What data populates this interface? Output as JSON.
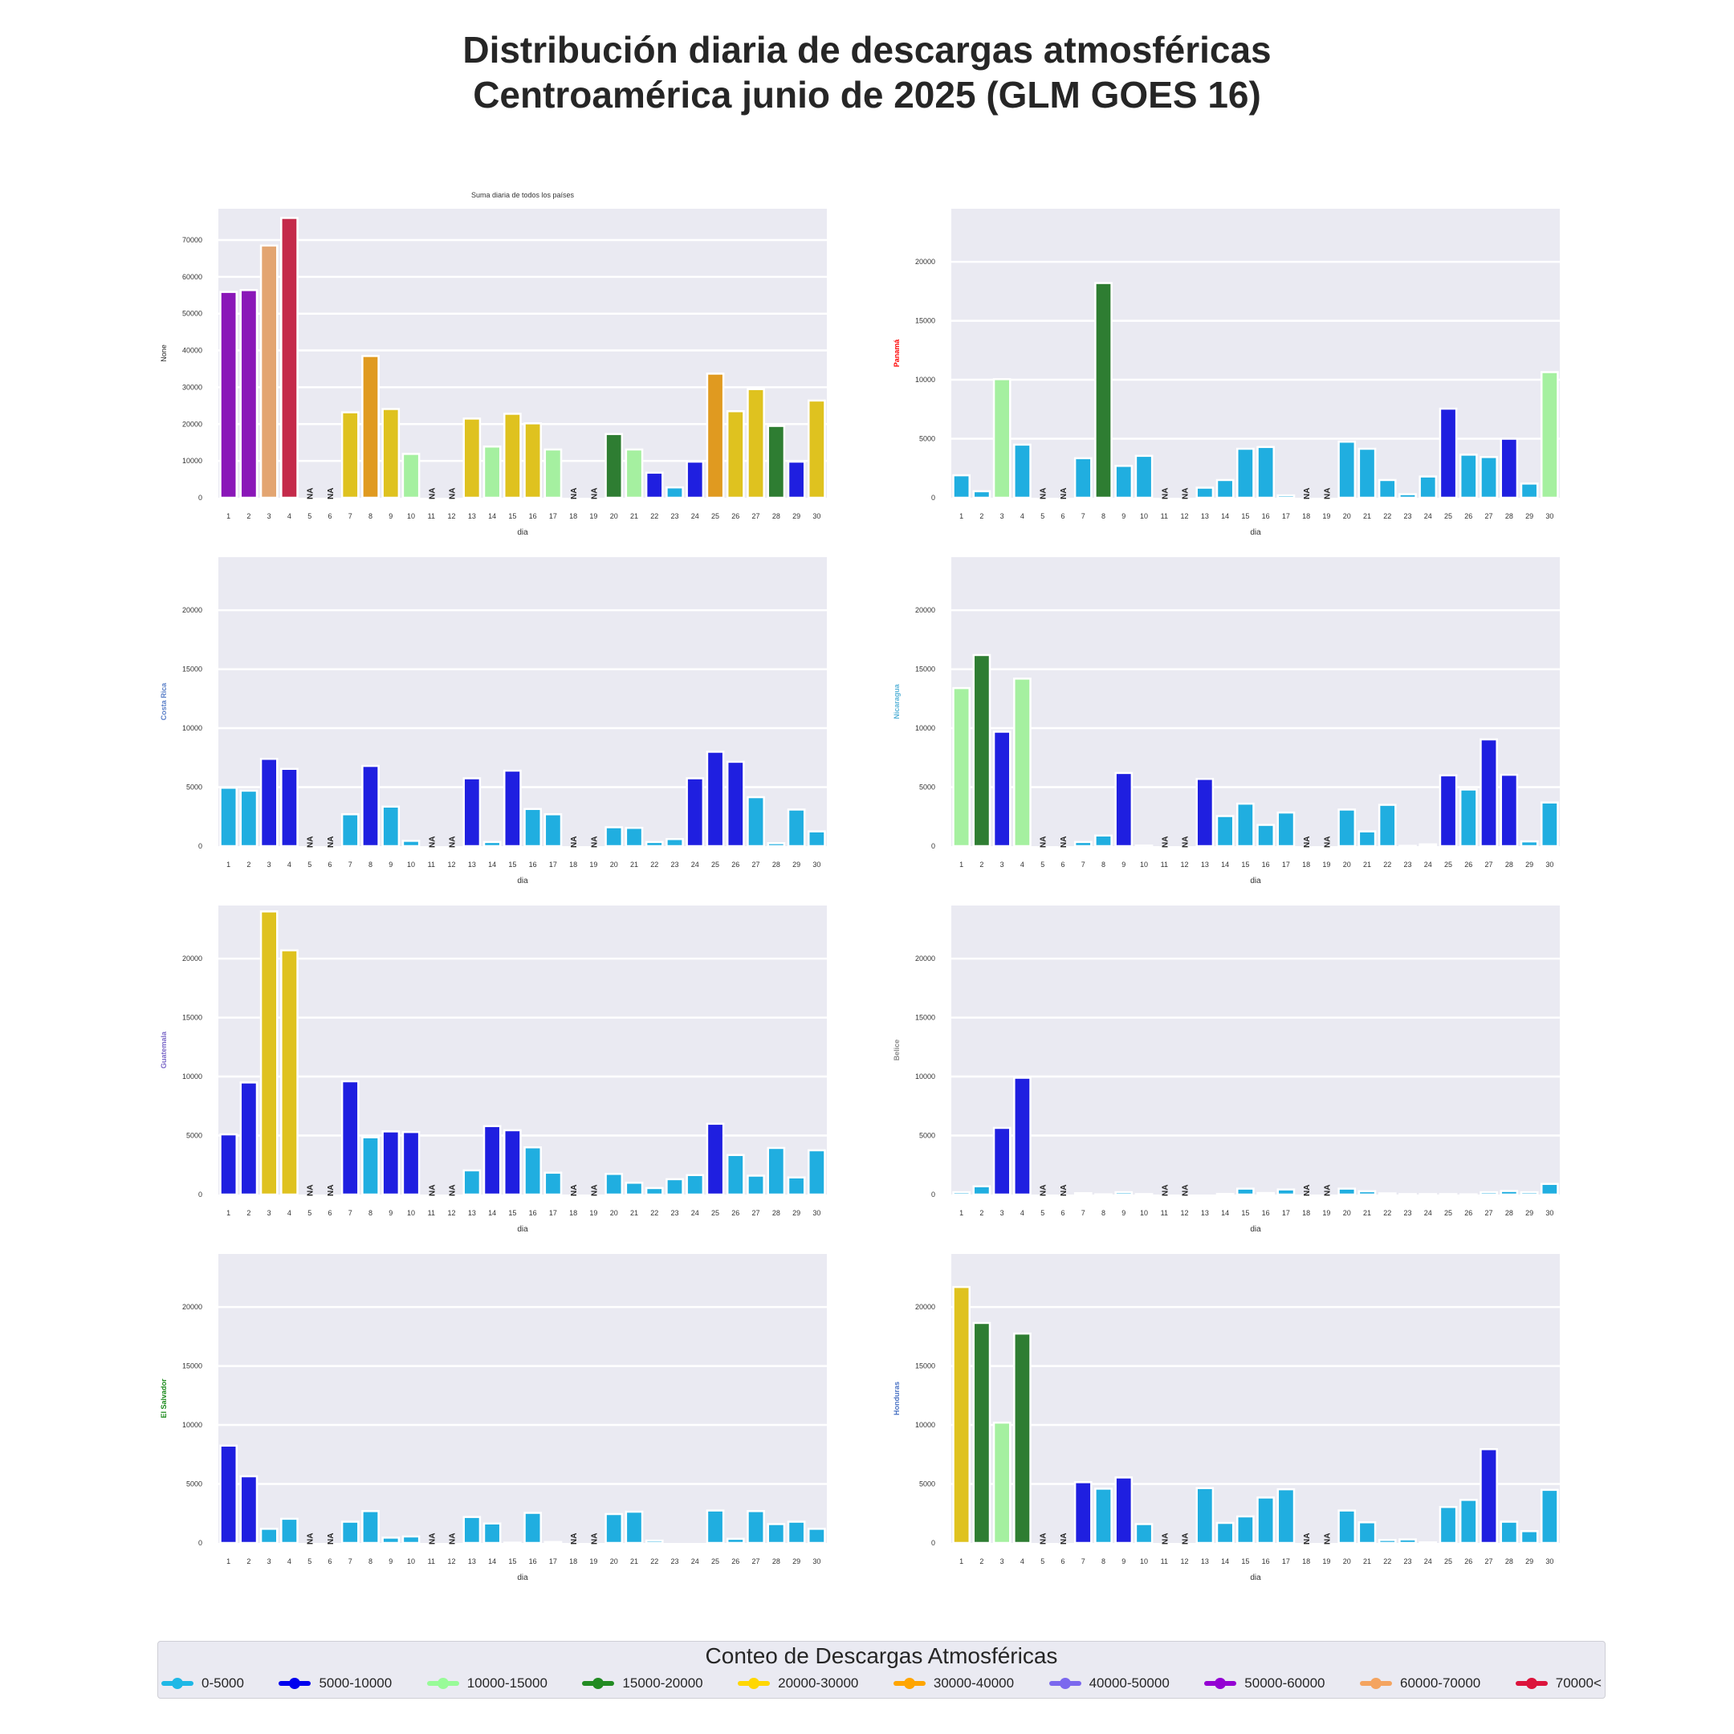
{
  "title": {
    "line1": "Distribución diaria de descargas atmosféricas",
    "line2": "Centroamérica junio de 2025 (GLM GOES 16)"
  },
  "legend": {
    "title": "Conteo de Descargas Atmosféricas",
    "items": [
      {
        "label": "0-5000",
        "color": "#1eb8e6"
      },
      {
        "label": "5000-10000",
        "color": "#0000ee"
      },
      {
        "label": "10000-15000",
        "color": "#98fb98"
      },
      {
        "label": "15000-20000",
        "color": "#228b22"
      },
      {
        "label": "20000-30000",
        "color": "#ffd700"
      },
      {
        "label": "30000-40000",
        "color": "#ffa500"
      },
      {
        "label": "40000-50000",
        "color": "#7b68ee"
      },
      {
        "label": "50000-60000",
        "color": "#9400d3"
      },
      {
        "label": "60000-70000",
        "color": "#f4a460"
      },
      {
        "label": "70000<",
        "color": "#dc143c"
      }
    ]
  },
  "bar_colors": {
    "0-5000": "#20aee0",
    "5000-10000": "#1f1fe0",
    "10000-15000": "#a5f0a0",
    "15000-20000": "#2e7d32",
    "20000-30000": "#dfc21f",
    "30000-40000": "#e09a20",
    "40000-50000": "#7a6be0",
    "50000-60000": "#8a17b8",
    "60000-70000": "#e3a571",
    "70000<": "#c42a4a"
  },
  "na_label": "NA",
  "chart_data": [
    {
      "type": "bar",
      "title": "Suma diaria de todos los países",
      "xlabel": "dia",
      "ylabel": "None",
      "ylabel_color": "#262626",
      "ylim": [
        0,
        78500
      ],
      "yticks": [
        0,
        10000,
        20000,
        30000,
        40000,
        50000,
        60000,
        70000
      ],
      "categories": [
        1,
        2,
        3,
        4,
        5,
        6,
        7,
        8,
        9,
        10,
        11,
        12,
        13,
        14,
        15,
        16,
        17,
        18,
        19,
        20,
        21,
        22,
        23,
        24,
        25,
        26,
        27,
        28,
        29,
        30
      ],
      "values": [
        55900,
        56400,
        68500,
        76000,
        null,
        null,
        23200,
        38500,
        24100,
        11900,
        null,
        null,
        21500,
        13900,
        22800,
        20200,
        13100,
        null,
        null,
        17300,
        13100,
        6800,
        2800,
        9800,
        33700,
        23500,
        29500,
        19500,
        9800,
        26400
      ],
      "na_days": [
        5,
        6,
        11,
        12,
        18,
        19
      ],
      "grid": true
    },
    {
      "type": "bar",
      "title": "",
      "xlabel": "dia",
      "ylabel": "Panamá",
      "ylabel_color": "#ff0000",
      "ylim": [
        0,
        24500
      ],
      "yticks": [
        0,
        5000,
        10000,
        15000,
        20000
      ],
      "categories": [
        1,
        2,
        3,
        4,
        5,
        6,
        7,
        8,
        9,
        10,
        11,
        12,
        13,
        14,
        15,
        16,
        17,
        18,
        19,
        20,
        21,
        22,
        23,
        24,
        25,
        26,
        27,
        28,
        29,
        30
      ],
      "values": [
        1900,
        550,
        10050,
        4500,
        null,
        null,
        3350,
        18200,
        2700,
        3550,
        null,
        null,
        850,
        1500,
        4150,
        4300,
        200,
        null,
        null,
        4750,
        4150,
        1500,
        300,
        1800,
        7550,
        3650,
        3450,
        5000,
        1200,
        10650
      ],
      "na_days": [
        5,
        6,
        11,
        12,
        18,
        19
      ],
      "grid": true
    },
    {
      "type": "bar",
      "title": "",
      "xlabel": "dia",
      "ylabel": "Costa Rica",
      "ylabel_color": "#5a7fc8",
      "ylim": [
        0,
        24500
      ],
      "yticks": [
        0,
        5000,
        10000,
        15000,
        20000
      ],
      "categories": [
        1,
        2,
        3,
        4,
        5,
        6,
        7,
        8,
        9,
        10,
        11,
        12,
        13,
        14,
        15,
        16,
        17,
        18,
        19,
        20,
        21,
        22,
        23,
        24,
        25,
        26,
        27,
        28,
        29,
        30
      ],
      "values": [
        4950,
        4700,
        7400,
        6550,
        null,
        null,
        2700,
        6800,
        3350,
        450,
        null,
        null,
        5750,
        350,
        6400,
        3150,
        2700,
        null,
        null,
        1600,
        1550,
        350,
        600,
        5750,
        8000,
        7150,
        4150,
        250,
        3100,
        1250
      ],
      "na_days": [
        5,
        6,
        11,
        12,
        18,
        19
      ],
      "grid": true
    },
    {
      "type": "bar",
      "title": "",
      "xlabel": "dia",
      "ylabel": "Nicaragua",
      "ylabel_color": "#5ab4d8",
      "ylim": [
        0,
        24500
      ],
      "yticks": [
        0,
        5000,
        10000,
        15000,
        20000
      ],
      "categories": [
        1,
        2,
        3,
        4,
        5,
        6,
        7,
        8,
        9,
        10,
        11,
        12,
        13,
        14,
        15,
        16,
        17,
        18,
        19,
        20,
        21,
        22,
        23,
        24,
        25,
        26,
        27,
        28,
        29,
        30
      ],
      "values": [
        13400,
        16200,
        9700,
        14200,
        null,
        null,
        350,
        900,
        6200,
        50,
        null,
        null,
        5700,
        2550,
        3600,
        1800,
        2850,
        null,
        null,
        3100,
        1250,
        3500,
        30,
        150,
        6000,
        4800,
        9050,
        6050,
        400,
        3700
      ],
      "na_days": [
        5,
        6,
        11,
        12,
        18,
        19
      ],
      "grid": true
    },
    {
      "type": "bar",
      "title": "",
      "xlabel": "dia",
      "ylabel": "Guatemala",
      "ylabel_color": "#7b68c8",
      "ylim": [
        0,
        24500
      ],
      "yticks": [
        0,
        5000,
        10000,
        15000,
        20000
      ],
      "categories": [
        1,
        2,
        3,
        4,
        5,
        6,
        7,
        8,
        9,
        10,
        11,
        12,
        13,
        14,
        15,
        16,
        17,
        18,
        19,
        20,
        21,
        22,
        23,
        24,
        25,
        26,
        27,
        28,
        29,
        30
      ],
      "values": [
        5100,
        9500,
        24000,
        20700,
        null,
        null,
        9600,
        4850,
        5350,
        5300,
        null,
        null,
        2050,
        5800,
        5450,
        4000,
        1850,
        null,
        null,
        1750,
        1000,
        550,
        1300,
        1650,
        6000,
        3350,
        1600,
        3950,
        1450,
        3750
      ],
      "na_days": [
        5,
        6,
        11,
        12,
        18,
        19
      ],
      "grid": true
    },
    {
      "type": "bar",
      "title": "",
      "xlabel": "dia",
      "ylabel": "Belice",
      "ylabel_color": "#8c8c8c",
      "ylim": [
        0,
        24500
      ],
      "yticks": [
        0,
        5000,
        10000,
        15000,
        20000
      ],
      "categories": [
        1,
        2,
        3,
        4,
        5,
        6,
        7,
        8,
        9,
        10,
        11,
        12,
        13,
        14,
        15,
        16,
        17,
        18,
        19,
        20,
        21,
        22,
        23,
        24,
        25,
        26,
        27,
        28,
        29,
        30
      ],
      "values": [
        200,
        700,
        5650,
        9900,
        null,
        null,
        120,
        20,
        200,
        40,
        null,
        null,
        0,
        50,
        500,
        130,
        430,
        null,
        null,
        500,
        280,
        100,
        40,
        40,
        40,
        20,
        200,
        300,
        200,
        900
      ],
      "na_days": [
        5,
        6,
        11,
        12,
        18,
        19
      ],
      "grid": true
    },
    {
      "type": "bar",
      "title": "",
      "xlabel": "dia",
      "ylabel": "El Salvador",
      "ylabel_color": "#1a8a1a",
      "ylim": [
        0,
        24500
      ],
      "yticks": [
        0,
        5000,
        10000,
        15000,
        20000
      ],
      "categories": [
        1,
        2,
        3,
        4,
        5,
        6,
        7,
        8,
        9,
        10,
        11,
        12,
        13,
        14,
        15,
        16,
        17,
        18,
        19,
        20,
        21,
        22,
        23,
        24,
        25,
        26,
        27,
        28,
        29,
        30
      ],
      "values": [
        8250,
        5650,
        1200,
        2050,
        null,
        null,
        1800,
        2700,
        450,
        550,
        null,
        null,
        2200,
        1650,
        30,
        2550,
        80,
        null,
        null,
        2450,
        2650,
        200,
        0,
        0,
        2750,
        350,
        2700,
        1600,
        1800,
        1200
      ],
      "na_days": [
        5,
        6,
        11,
        12,
        18,
        19
      ],
      "grid": true
    },
    {
      "type": "bar",
      "title": "",
      "xlabel": "dia",
      "ylabel": "Honduras",
      "ylabel_color": "#4a72c4",
      "ylim": [
        0,
        24500
      ],
      "yticks": [
        0,
        5000,
        10000,
        15000,
        20000
      ],
      "categories": [
        1,
        2,
        3,
        4,
        5,
        6,
        7,
        8,
        9,
        10,
        11,
        12,
        13,
        14,
        15,
        16,
        17,
        18,
        19,
        20,
        21,
        22,
        23,
        24,
        25,
        26,
        27,
        28,
        29,
        30
      ],
      "values": [
        21700,
        18650,
        10200,
        17750,
        null,
        null,
        5150,
        4600,
        5550,
        1600,
        null,
        null,
        4650,
        1700,
        2250,
        3850,
        4550,
        null,
        null,
        2750,
        1750,
        250,
        300,
        50,
        3050,
        3650,
        7950,
        1800,
        1000,
        4500
      ],
      "na_days": [
        5,
        6,
        11,
        12,
        18,
        19
      ],
      "grid": true
    }
  ]
}
